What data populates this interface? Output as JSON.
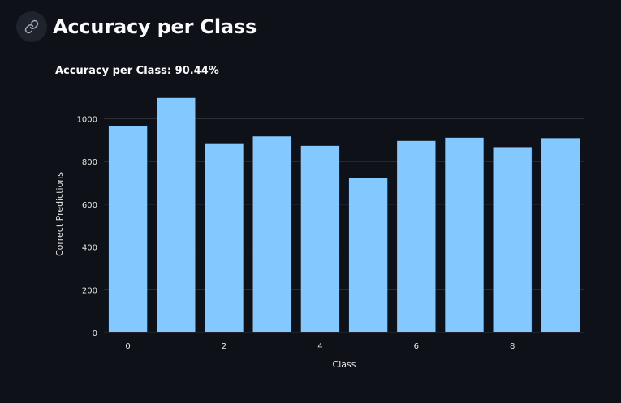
{
  "header": {
    "title": "Accuracy per Class",
    "anchor_icon": "link-icon"
  },
  "colors": {
    "background": "#0e1117",
    "bar": "#83c9ff",
    "grid": "#31333f",
    "text": "#fafafa",
    "tick_text": "#e6e6e6"
  },
  "chart_data": {
    "type": "bar",
    "title": "Accuracy per Class: 90.44%",
    "xlabel": "Class",
    "ylabel": "Correct Predictions",
    "categories": [
      0,
      1,
      2,
      3,
      4,
      5,
      6,
      7,
      8,
      9
    ],
    "values": [
      965,
      1097,
      885,
      917,
      873,
      723,
      896,
      911,
      867,
      909
    ],
    "x_ticks": [
      "0",
      "2",
      "4",
      "6",
      "8"
    ],
    "y_ticks": [
      "0",
      "200",
      "400",
      "600",
      "800",
      "1000"
    ],
    "ylim": [
      0,
      1100
    ],
    "grid": "horizontal",
    "legend": "none"
  }
}
